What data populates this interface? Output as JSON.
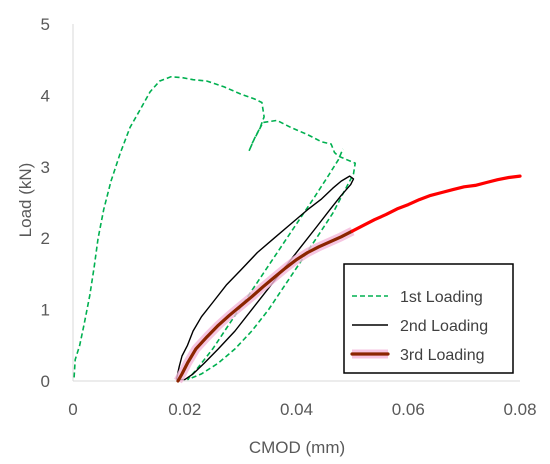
{
  "chart_data": {
    "type": "line",
    "title": "",
    "xlabel": "CMOD (mm)",
    "ylabel": "Load (kN)",
    "xlim": [
      0,
      0.08
    ],
    "ylim": [
      0,
      5
    ],
    "x_ticks": [
      "0",
      "0.02",
      "0.04",
      "0.06",
      "0.08"
    ],
    "x_tick_values": [
      0,
      0.02,
      0.04,
      0.06,
      0.08
    ],
    "y_ticks": [
      "0",
      "1",
      "2",
      "3",
      "4",
      "5"
    ],
    "y_tick_values": [
      0,
      1,
      2,
      3,
      4,
      5
    ],
    "grid": false,
    "legend_position": "bottom-right",
    "series": [
      {
        "name": "1st Loading",
        "color": "#00B050",
        "style": "dashed",
        "points": [
          [
            0.0002,
            0.05
          ],
          [
            0.0004,
            0.3
          ],
          [
            0.0012,
            0.5
          ],
          [
            0.002,
            0.8
          ],
          [
            0.003,
            1.2
          ],
          [
            0.0038,
            1.6
          ],
          [
            0.0045,
            2.0
          ],
          [
            0.0055,
            2.4
          ],
          [
            0.0068,
            2.8
          ],
          [
            0.0085,
            3.2
          ],
          [
            0.0102,
            3.55
          ],
          [
            0.012,
            3.8
          ],
          [
            0.0138,
            4.05
          ],
          [
            0.0155,
            4.2
          ],
          [
            0.0175,
            4.26
          ],
          [
            0.0195,
            4.25
          ],
          [
            0.0215,
            4.22
          ],
          [
            0.024,
            4.2
          ],
          [
            0.027,
            4.12
          ],
          [
            0.03,
            4.02
          ],
          [
            0.0325,
            3.95
          ],
          [
            0.0338,
            3.9
          ],
          [
            0.0342,
            3.7
          ],
          [
            0.0335,
            3.55
          ],
          [
            0.0325,
            3.4
          ],
          [
            0.0315,
            3.22
          ],
          [
            0.0322,
            3.35
          ],
          [
            0.034,
            3.62
          ],
          [
            0.0365,
            3.65
          ],
          [
            0.039,
            3.55
          ],
          [
            0.042,
            3.45
          ],
          [
            0.0445,
            3.35
          ],
          [
            0.0462,
            3.32
          ],
          [
            0.0468,
            3.2
          ],
          [
            0.0475,
            3.15
          ],
          [
            0.049,
            3.1
          ],
          [
            0.0505,
            3.05
          ],
          [
            0.0502,
            2.9
          ],
          [
            0.0485,
            2.65
          ],
          [
            0.0465,
            2.35
          ],
          [
            0.044,
            2.05
          ],
          [
            0.041,
            1.7
          ],
          [
            0.038,
            1.35
          ],
          [
            0.035,
            1.0
          ],
          [
            0.032,
            0.7
          ],
          [
            0.029,
            0.45
          ],
          [
            0.026,
            0.25
          ],
          [
            0.023,
            0.1
          ],
          [
            0.0205,
            0.02
          ],
          [
            0.022,
            0.15
          ],
          [
            0.025,
            0.45
          ],
          [
            0.028,
            0.8
          ],
          [
            0.031,
            1.15
          ],
          [
            0.034,
            1.5
          ],
          [
            0.037,
            1.85
          ],
          [
            0.04,
            2.2
          ],
          [
            0.043,
            2.55
          ],
          [
            0.0455,
            2.85
          ],
          [
            0.0475,
            3.1
          ],
          [
            0.0483,
            3.25
          ]
        ]
      },
      {
        "name": "2nd Loading",
        "color": "#000000",
        "style": "solid",
        "points": [
          [
            0.0185,
            0.02
          ],
          [
            0.019,
            0.2
          ],
          [
            0.0195,
            0.35
          ],
          [
            0.0205,
            0.5
          ],
          [
            0.0215,
            0.7
          ],
          [
            0.023,
            0.9
          ],
          [
            0.025,
            1.1
          ],
          [
            0.0275,
            1.35
          ],
          [
            0.03,
            1.55
          ],
          [
            0.033,
            1.8
          ],
          [
            0.036,
            2.0
          ],
          [
            0.039,
            2.2
          ],
          [
            0.042,
            2.4
          ],
          [
            0.0445,
            2.55
          ],
          [
            0.0465,
            2.7
          ],
          [
            0.048,
            2.8
          ],
          [
            0.0495,
            2.87
          ],
          [
            0.0502,
            2.83
          ],
          [
            0.0497,
            2.75
          ],
          [
            0.048,
            2.6
          ],
          [
            0.046,
            2.4
          ],
          [
            0.0435,
            2.15
          ],
          [
            0.041,
            1.9
          ],
          [
            0.038,
            1.6
          ],
          [
            0.035,
            1.3
          ],
          [
            0.032,
            1.0
          ],
          [
            0.029,
            0.7
          ],
          [
            0.026,
            0.45
          ],
          [
            0.0235,
            0.25
          ],
          [
            0.0215,
            0.1
          ],
          [
            0.02,
            0.02
          ],
          [
            0.0185,
            0.02
          ]
        ]
      },
      {
        "name": "3rd Loading",
        "color": "#8B2500",
        "style": "solid-thick",
        "points": [
          [
            0.0188,
            0.0
          ],
          [
            0.0195,
            0.1
          ],
          [
            0.0205,
            0.25
          ],
          [
            0.022,
            0.45
          ],
          [
            0.024,
            0.62
          ],
          [
            0.026,
            0.78
          ],
          [
            0.028,
            0.92
          ],
          [
            0.03,
            1.05
          ],
          [
            0.032,
            1.18
          ],
          [
            0.034,
            1.32
          ],
          [
            0.036,
            1.45
          ],
          [
            0.038,
            1.58
          ],
          [
            0.04,
            1.7
          ],
          [
            0.042,
            1.8
          ],
          [
            0.044,
            1.88
          ],
          [
            0.046,
            1.95
          ],
          [
            0.048,
            2.02
          ],
          [
            0.05,
            2.1
          ]
        ]
      },
      {
        "name": "",
        "color": "#FF0000",
        "style": "solid-thick",
        "points": [
          [
            0.05,
            2.1
          ],
          [
            0.052,
            2.18
          ],
          [
            0.054,
            2.26
          ],
          [
            0.056,
            2.33
          ],
          [
            0.058,
            2.41
          ],
          [
            0.06,
            2.47
          ],
          [
            0.062,
            2.54
          ],
          [
            0.064,
            2.6
          ],
          [
            0.066,
            2.64
          ],
          [
            0.068,
            2.68
          ],
          [
            0.07,
            2.72
          ],
          [
            0.072,
            2.74
          ],
          [
            0.074,
            2.78
          ],
          [
            0.076,
            2.82
          ],
          [
            0.078,
            2.85
          ],
          [
            0.08,
            2.87
          ]
        ]
      }
    ]
  }
}
